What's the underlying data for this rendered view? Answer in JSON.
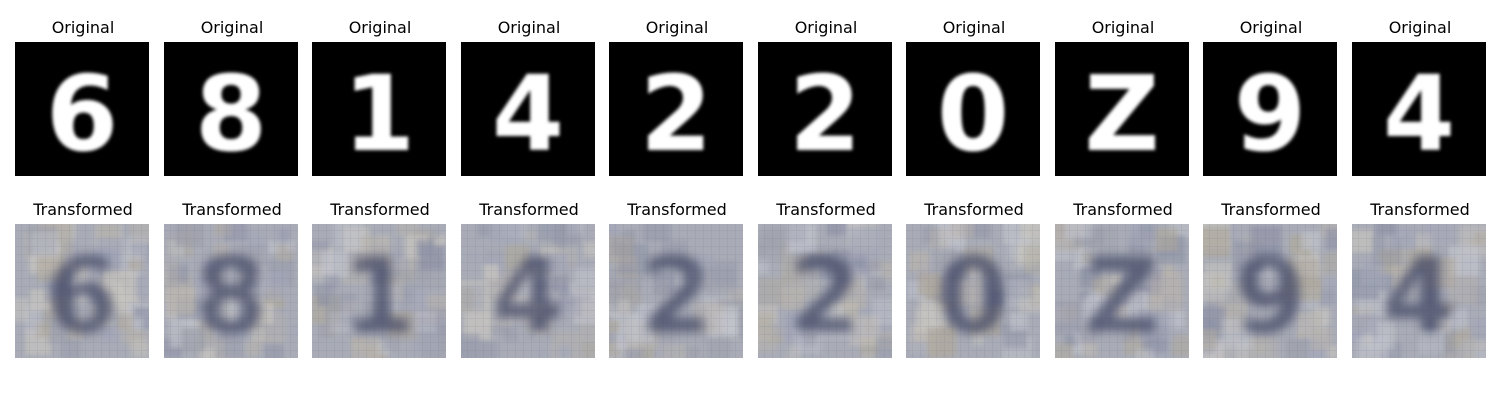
{
  "original_label": "Original",
  "transformed_label": "Transformed",
  "digits": [
    "6",
    "8",
    "1",
    "4",
    "2",
    "2",
    "0",
    "Z",
    "9",
    "4"
  ]
}
